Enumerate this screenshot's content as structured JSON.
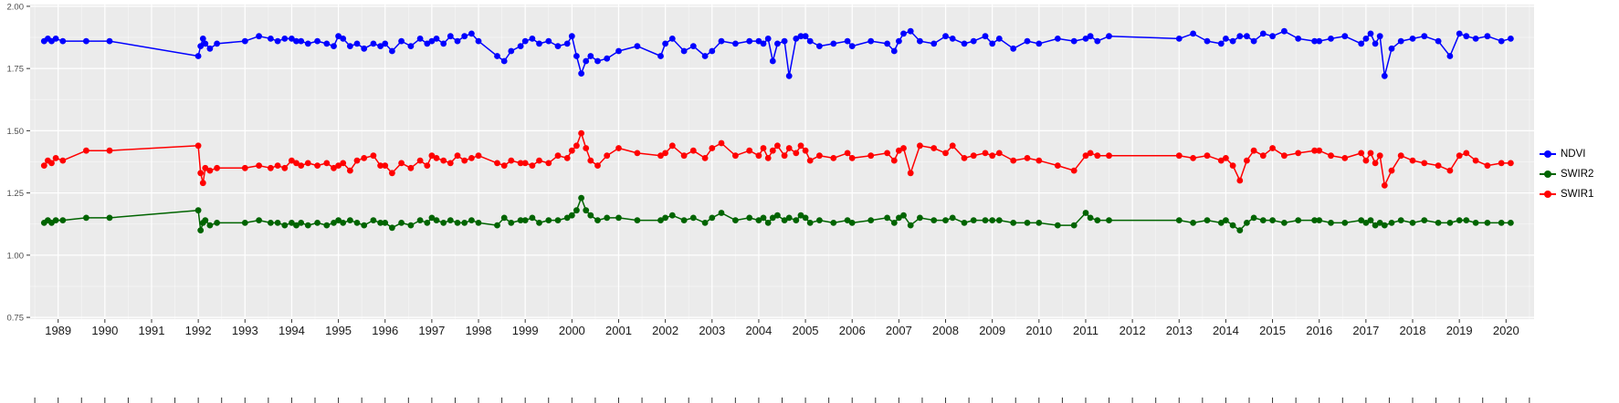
{
  "figure": {
    "background": "#FFFFFF",
    "panel_background": "#EBEBEB",
    "grid_color": "#FFFFFF",
    "tick_color": "#333333",
    "x_axis_text_color": "#1A1A1A",
    "y_axis_text_color": "#4D4D4D"
  },
  "legend": {
    "items": [
      {
        "label": "NDVI",
        "color": "#0000FF"
      },
      {
        "label": "SWIR2",
        "color": "#006400"
      },
      {
        "label": "SWIR1",
        "color": "#FF0000"
      }
    ]
  },
  "chart_data": {
    "type": "line",
    "title": "",
    "xlabel": "",
    "ylabel": "",
    "grid": true,
    "legend_position": "right",
    "x_range": [
      1988.4,
      2020.6
    ],
    "y_range": [
      0.75,
      2.0
    ],
    "y_ticks": [
      {
        "value": 2.0,
        "label": "2.00"
      },
      {
        "value": 1.75,
        "label": "1.75"
      },
      {
        "value": 1.5,
        "label": "1.50"
      },
      {
        "value": 1.25,
        "label": "1.25"
      },
      {
        "value": 1.0,
        "label": "1.00"
      },
      {
        "value": 0.75,
        "label": "0.75"
      }
    ],
    "x_ticks": [
      {
        "value": 1989,
        "label": "1989"
      },
      {
        "value": 1990,
        "label": "1990"
      },
      {
        "value": 1991,
        "label": "1991"
      },
      {
        "value": 1992,
        "label": "1992"
      },
      {
        "value": 1993,
        "label": "1993"
      },
      {
        "value": 1994,
        "label": "1994"
      },
      {
        "value": 1995,
        "label": "1995"
      },
      {
        "value": 1996,
        "label": "1996"
      },
      {
        "value": 1997,
        "label": "1997"
      },
      {
        "value": 1998,
        "label": "1998"
      },
      {
        "value": 1999,
        "label": "1999"
      },
      {
        "value": 2000,
        "label": "2000"
      },
      {
        "value": 2001,
        "label": "2001"
      },
      {
        "value": 2002,
        "label": "2002"
      },
      {
        "value": 2003,
        "label": "2003"
      },
      {
        "value": 2004,
        "label": "2004"
      },
      {
        "value": 2005,
        "label": "2005"
      },
      {
        "value": 2006,
        "label": "2006"
      },
      {
        "value": 2007,
        "label": "2007"
      },
      {
        "value": 2008,
        "label": "2008"
      },
      {
        "value": 2009,
        "label": "2009"
      },
      {
        "value": 2010,
        "label": "2010"
      },
      {
        "value": 2011,
        "label": "2011"
      },
      {
        "value": 2012,
        "label": "2012"
      },
      {
        "value": 2013,
        "label": "2013"
      },
      {
        "value": 2014,
        "label": "2014"
      },
      {
        "value": 2015,
        "label": "2015"
      },
      {
        "value": 2016,
        "label": "2016"
      },
      {
        "value": 2017,
        "label": "2017"
      },
      {
        "value": 2018,
        "label": "2018"
      },
      {
        "value": 2019,
        "label": "2019"
      },
      {
        "value": 2020,
        "label": "2020"
      }
    ],
    "x": [
      1988.7,
      1988.78,
      1988.86,
      1988.95,
      1989.1,
      1989.6,
      1990.1,
      1992.0,
      1992.05,
      1992.1,
      1992.15,
      1992.25,
      1992.4,
      1993.0,
      1993.3,
      1993.55,
      1993.7,
      1993.85,
      1994.0,
      1994.1,
      1994.2,
      1994.35,
      1994.55,
      1994.75,
      1994.9,
      1995.0,
      1995.1,
      1995.25,
      1995.4,
      1995.55,
      1995.75,
      1995.9,
      1996.0,
      1996.15,
      1996.35,
      1996.55,
      1996.75,
      1996.9,
      1997.0,
      1997.1,
      1997.25,
      1997.4,
      1997.55,
      1997.7,
      1997.85,
      1998.0,
      1998.4,
      1998.55,
      1998.7,
      1998.9,
      1999.0,
      1999.15,
      1999.3,
      1999.5,
      1999.7,
      1999.9,
      2000.0,
      2000.1,
      2000.2,
      2000.3,
      2000.4,
      2000.55,
      2000.75,
      2001.0,
      2001.4,
      2001.9,
      2002.0,
      2002.15,
      2002.4,
      2002.6,
      2002.85,
      2003.0,
      2003.2,
      2003.5,
      2003.8,
      2004.0,
      2004.1,
      2004.2,
      2004.3,
      2004.4,
      2004.55,
      2004.65,
      2004.8,
      2004.9,
      2005.0,
      2005.1,
      2005.3,
      2005.6,
      2005.9,
      2006.0,
      2006.4,
      2006.75,
      2006.9,
      2007.0,
      2007.1,
      2007.25,
      2007.45,
      2007.75,
      2008.0,
      2008.15,
      2008.4,
      2008.6,
      2008.85,
      2009.0,
      2009.15,
      2009.45,
      2009.75,
      2010.0,
      2010.4,
      2010.75,
      2011.0,
      2011.1,
      2011.25,
      2011.5,
      2013.0,
      2013.3,
      2013.6,
      2013.9,
      2014.0,
      2014.15,
      2014.3,
      2014.45,
      2014.6,
      2014.8,
      2015.0,
      2015.25,
      2015.55,
      2015.9,
      2016.0,
      2016.25,
      2016.55,
      2016.9,
      2017.0,
      2017.1,
      2017.2,
      2017.3,
      2017.4,
      2017.55,
      2017.75,
      2018.0,
      2018.25,
      2018.55,
      2018.8,
      2019.0,
      2019.15,
      2019.35,
      2019.6,
      2019.9,
      2020.1
    ],
    "series": [
      {
        "name": "NDVI",
        "color": "#0000FF",
        "values": [
          1.86,
          1.87,
          1.86,
          1.87,
          1.86,
          1.86,
          1.86,
          1.8,
          1.84,
          1.87,
          1.85,
          1.83,
          1.85,
          1.86,
          1.88,
          1.87,
          1.86,
          1.87,
          1.87,
          1.86,
          1.86,
          1.85,
          1.86,
          1.85,
          1.84,
          1.88,
          1.87,
          1.84,
          1.85,
          1.83,
          1.85,
          1.84,
          1.85,
          1.82,
          1.86,
          1.84,
          1.87,
          1.85,
          1.86,
          1.87,
          1.85,
          1.88,
          1.86,
          1.88,
          1.89,
          1.86,
          1.8,
          1.78,
          1.82,
          1.84,
          1.86,
          1.87,
          1.85,
          1.86,
          1.84,
          1.85,
          1.88,
          1.8,
          1.73,
          1.78,
          1.8,
          1.78,
          1.79,
          1.82,
          1.84,
          1.8,
          1.85,
          1.87,
          1.82,
          1.84,
          1.8,
          1.82,
          1.86,
          1.85,
          1.86,
          1.86,
          1.85,
          1.87,
          1.78,
          1.85,
          1.86,
          1.72,
          1.87,
          1.88,
          1.88,
          1.86,
          1.84,
          1.85,
          1.86,
          1.84,
          1.86,
          1.85,
          1.82,
          1.86,
          1.89,
          1.9,
          1.86,
          1.85,
          1.88,
          1.87,
          1.85,
          1.86,
          1.88,
          1.85,
          1.87,
          1.83,
          1.86,
          1.85,
          1.87,
          1.86,
          1.87,
          1.88,
          1.86,
          1.88,
          1.87,
          1.89,
          1.86,
          1.85,
          1.87,
          1.86,
          1.88,
          1.88,
          1.86,
          1.89,
          1.88,
          1.9,
          1.87,
          1.86,
          1.86,
          1.87,
          1.88,
          1.85,
          1.87,
          1.89,
          1.85,
          1.88,
          1.72,
          1.83,
          1.86,
          1.87,
          1.88,
          1.86,
          1.8,
          1.89,
          1.88,
          1.87,
          1.88,
          1.86,
          1.87
        ]
      },
      {
        "name": "SWIR2",
        "color": "#006400",
        "values": [
          1.13,
          1.14,
          1.13,
          1.14,
          1.14,
          1.15,
          1.15,
          1.18,
          1.1,
          1.13,
          1.14,
          1.12,
          1.13,
          1.13,
          1.14,
          1.13,
          1.13,
          1.12,
          1.13,
          1.12,
          1.13,
          1.12,
          1.13,
          1.12,
          1.13,
          1.14,
          1.13,
          1.14,
          1.13,
          1.12,
          1.14,
          1.13,
          1.13,
          1.11,
          1.13,
          1.12,
          1.14,
          1.13,
          1.15,
          1.14,
          1.13,
          1.14,
          1.13,
          1.13,
          1.14,
          1.13,
          1.12,
          1.15,
          1.13,
          1.14,
          1.14,
          1.15,
          1.13,
          1.14,
          1.14,
          1.15,
          1.16,
          1.18,
          1.23,
          1.18,
          1.16,
          1.14,
          1.15,
          1.15,
          1.14,
          1.14,
          1.15,
          1.16,
          1.14,
          1.15,
          1.13,
          1.15,
          1.17,
          1.14,
          1.15,
          1.14,
          1.15,
          1.13,
          1.15,
          1.16,
          1.14,
          1.15,
          1.14,
          1.16,
          1.15,
          1.13,
          1.14,
          1.13,
          1.14,
          1.13,
          1.14,
          1.15,
          1.13,
          1.15,
          1.16,
          1.12,
          1.15,
          1.14,
          1.14,
          1.15,
          1.13,
          1.14,
          1.14,
          1.14,
          1.14,
          1.13,
          1.13,
          1.13,
          1.12,
          1.12,
          1.17,
          1.15,
          1.14,
          1.14,
          1.14,
          1.13,
          1.14,
          1.13,
          1.14,
          1.12,
          1.1,
          1.13,
          1.15,
          1.14,
          1.14,
          1.13,
          1.14,
          1.14,
          1.14,
          1.13,
          1.13,
          1.14,
          1.13,
          1.14,
          1.12,
          1.13,
          1.12,
          1.13,
          1.14,
          1.13,
          1.14,
          1.13,
          1.13,
          1.14,
          1.14,
          1.13,
          1.13,
          1.13,
          1.13
        ]
      },
      {
        "name": "SWIR1",
        "color": "#FF0000",
        "values": [
          1.36,
          1.38,
          1.37,
          1.39,
          1.38,
          1.42,
          1.42,
          1.44,
          1.33,
          1.29,
          1.35,
          1.34,
          1.35,
          1.35,
          1.36,
          1.35,
          1.36,
          1.35,
          1.38,
          1.37,
          1.36,
          1.37,
          1.36,
          1.37,
          1.35,
          1.36,
          1.37,
          1.34,
          1.38,
          1.39,
          1.4,
          1.36,
          1.36,
          1.33,
          1.37,
          1.35,
          1.38,
          1.36,
          1.4,
          1.39,
          1.38,
          1.37,
          1.4,
          1.38,
          1.39,
          1.4,
          1.37,
          1.36,
          1.38,
          1.37,
          1.37,
          1.36,
          1.38,
          1.37,
          1.4,
          1.39,
          1.42,
          1.44,
          1.49,
          1.43,
          1.38,
          1.36,
          1.4,
          1.43,
          1.41,
          1.4,
          1.41,
          1.44,
          1.4,
          1.42,
          1.39,
          1.43,
          1.45,
          1.4,
          1.42,
          1.4,
          1.43,
          1.39,
          1.42,
          1.44,
          1.4,
          1.43,
          1.41,
          1.44,
          1.42,
          1.38,
          1.4,
          1.39,
          1.41,
          1.39,
          1.4,
          1.41,
          1.38,
          1.42,
          1.43,
          1.33,
          1.44,
          1.43,
          1.41,
          1.44,
          1.39,
          1.4,
          1.41,
          1.4,
          1.41,
          1.38,
          1.39,
          1.38,
          1.36,
          1.34,
          1.4,
          1.41,
          1.4,
          1.4,
          1.4,
          1.39,
          1.4,
          1.38,
          1.39,
          1.36,
          1.3,
          1.38,
          1.42,
          1.4,
          1.43,
          1.4,
          1.41,
          1.42,
          1.42,
          1.4,
          1.39,
          1.41,
          1.38,
          1.41,
          1.37,
          1.4,
          1.28,
          1.34,
          1.4,
          1.38,
          1.37,
          1.36,
          1.34,
          1.4,
          1.41,
          1.38,
          1.36,
          1.37,
          1.37
        ]
      }
    ]
  }
}
